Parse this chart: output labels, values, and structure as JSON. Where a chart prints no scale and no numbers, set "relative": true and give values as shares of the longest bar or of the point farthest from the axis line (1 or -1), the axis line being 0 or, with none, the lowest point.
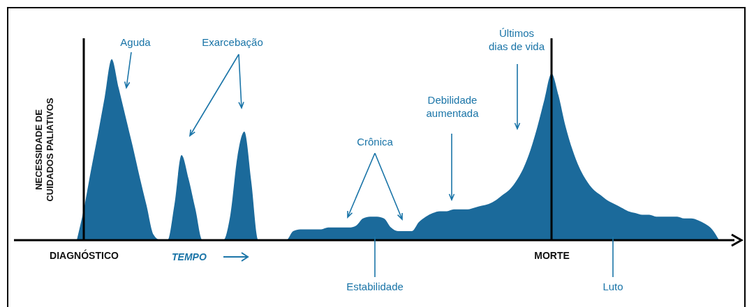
{
  "chart_data": {
    "type": "area",
    "relative": true,
    "categories": [
      null,
      "DIAGNÓSTICO",
      null,
      null,
      null,
      null,
      null,
      null,
      null,
      null,
      null,
      null,
      null,
      null,
      null,
      null,
      null,
      null,
      null,
      null,
      null,
      null,
      null,
      null,
      null,
      null,
      null,
      null,
      null,
      null,
      null,
      null,
      null,
      null,
      null,
      null,
      null,
      null,
      null,
      null,
      null,
      null,
      null,
      null,
      null,
      null,
      null,
      null,
      null,
      null,
      null,
      null,
      null,
      null,
      null,
      null,
      null,
      null,
      null,
      null,
      null,
      null,
      null,
      null,
      null,
      null,
      null,
      null,
      "MORTE",
      null,
      null,
      null,
      null,
      null,
      null,
      null,
      null,
      null,
      null,
      null,
      null,
      null,
      null,
      null,
      null,
      null,
      null,
      null,
      null,
      null,
      null,
      null,
      null
    ],
    "series": [
      {
        "color": "#1b6a9b",
        "values": [
          0,
          0.17,
          0.38,
          0.58,
          0.79,
          1,
          0.84,
          0.68,
          0.52,
          0.35,
          0.19,
          0.03,
          0,
          0,
          0.2,
          0.47,
          0.34,
          0.17,
          0,
          0,
          0,
          0,
          0.14,
          0.46,
          0.6,
          0.32,
          0,
          0,
          0,
          0,
          0,
          0.05,
          0.06,
          0.06,
          0.06,
          0.06,
          0.07,
          0.07,
          0.07,
          0.07,
          0.08,
          0.12,
          0.13,
          0.13,
          0.12,
          0.07,
          0.05,
          0.05,
          0.05,
          0.1,
          0.13,
          0.15,
          0.16,
          0.16,
          0.17,
          0.17,
          0.17,
          0.18,
          0.19,
          0.2,
          0.22,
          0.25,
          0.28,
          0.33,
          0.4,
          0.5,
          0.63,
          0.78,
          0.92,
          0.8,
          0.63,
          0.5,
          0.4,
          0.33,
          0.28,
          0.25,
          0.22,
          0.2,
          0.18,
          0.16,
          0.15,
          0.14,
          0.14,
          0.13,
          0.13,
          0.13,
          0.13,
          0.12,
          0.12,
          0.11,
          0.09,
          0.06,
          0
        ]
      }
    ],
    "xlabel": "TEMPO",
    "ylabel": "NECESSIDADE DE\nCUIDADOS PALIATIVOS",
    "ref_lines": [
      {
        "axis": "x",
        "value": "DIAGNÓSTICO"
      },
      {
        "axis": "x",
        "value": "MORTE"
      }
    ],
    "annotations": [
      "Aguda",
      "Exarcebação",
      "Crônica",
      "Debilidade\naumentada",
      "Últimos\ndias de vida",
      "Estabilidade",
      "Luto"
    ]
  }
}
